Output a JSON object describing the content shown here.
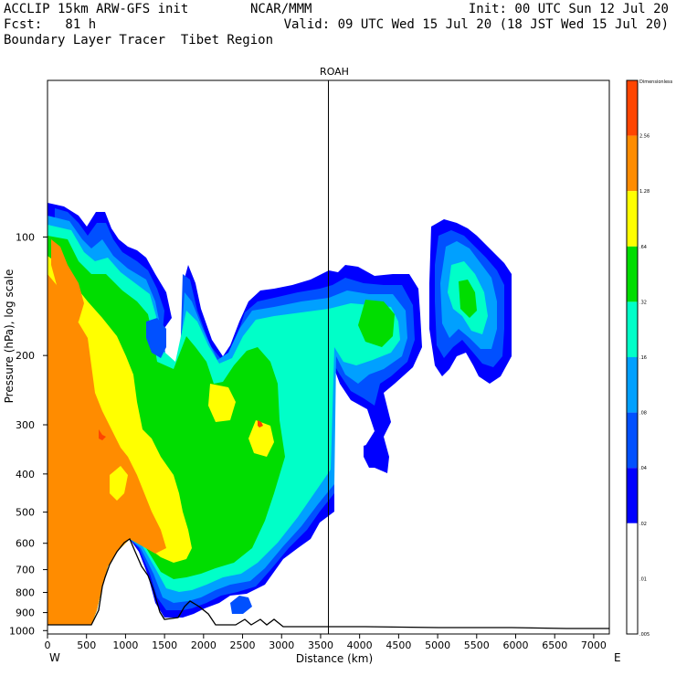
{
  "header": {
    "line1_left": "ACCLIP 15km ARW-GFS init",
    "line1_mid": "NCAR/MMM",
    "line1_right": "Init: 00 UTC Sun 12 Jul 20",
    "line2_left": "Fcst:   81 h",
    "line2_right": "Valid: 09 UTC Wed 15 Jul 20 (18 JST Wed 15 Jul 20)",
    "line3_left": "Boundary Layer Tracer  Tibet Region"
  },
  "chart_data": {
    "type": "contour-cross-section",
    "title": "ROAH",
    "xlabel": "Distance (km)",
    "ylabel": "Pressure (hPa), log scale",
    "x_ticks": [
      0,
      500,
      1000,
      1500,
      2000,
      2500,
      3000,
      3500,
      4000,
      4500,
      5000,
      5500,
      6000,
      6500,
      7000
    ],
    "y_ticks": [
      100,
      200,
      300,
      400,
      500,
      600,
      700,
      800,
      900,
      1000
    ],
    "y_scale": "log",
    "xlim": [
      0,
      7200
    ],
    "ylim": [
      1020,
      40
    ],
    "left_end_label": "W",
    "right_end_label": "E",
    "marker_line_x": 3600,
    "colorbar": {
      "top_label": "Dimensionless",
      "levels": [
        "2.56",
        "1.28",
        ".64",
        ".32",
        ".16",
        ".08",
        ".04",
        ".02",
        ".01",
        ".005"
      ],
      "colors": [
        "#ff4500",
        "#ff8c00",
        "#ffff00",
        "#00dd00",
        "#00ffc8",
        "#00a0ff",
        "#0050ff",
        "#0000ff",
        "#ffffff"
      ]
    }
  }
}
